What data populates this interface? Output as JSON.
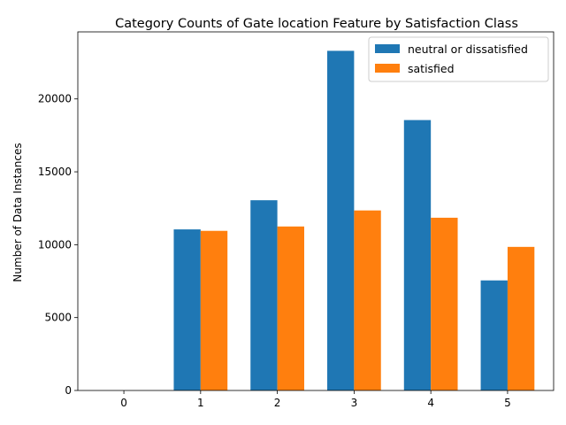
{
  "chart_data": {
    "type": "bar",
    "title": "Category Counts of Gate location Feature by Satisfaction Class",
    "xlabel": "",
    "ylabel": "Number of Data Instances",
    "categories": [
      "0",
      "1",
      "2",
      "3",
      "4",
      "5"
    ],
    "series": [
      {
        "name": "neutral or dissatisfied",
        "color": "#1f77b4",
        "values": [
          0,
          11050,
          13050,
          23300,
          18550,
          7550
        ]
      },
      {
        "name": "satisfied",
        "color": "#ff7f0e",
        "values": [
          0,
          10950,
          11250,
          12350,
          11850,
          9850
        ]
      }
    ],
    "ylim": [
      0,
      24600
    ],
    "yticks": [
      0,
      5000,
      10000,
      15000,
      20000
    ],
    "grid": false,
    "legend": "top-right"
  }
}
